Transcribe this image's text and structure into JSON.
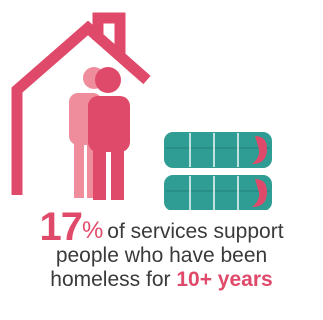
{
  "colors": {
    "accent": "#e04a6a",
    "accent_light": "#ef8d9c",
    "teal": "#2f9d93",
    "text": "#3a3a3a"
  },
  "icons": {
    "house": "house-outline-icon",
    "people": "two-people-icon",
    "calendar": "calendar-pages-icon"
  },
  "stat": {
    "number": "17",
    "percent_sign": "%",
    "text_line1": "of services support",
    "text_line2": "people who have been",
    "text_line3_prefix": "homeless for",
    "highlight": "10+ years"
  }
}
